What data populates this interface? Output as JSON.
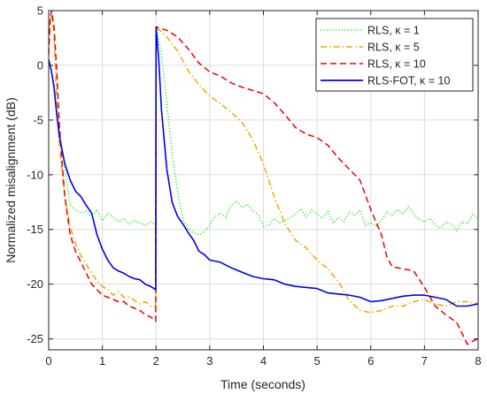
{
  "chart_data": {
    "type": "line",
    "xlabel": "Time (seconds)",
    "ylabel": "Normalized misalignment (dB)",
    "xlim": [
      0,
      8
    ],
    "ylim": [
      -26,
      5
    ],
    "xticks": [
      0,
      1,
      2,
      3,
      4,
      5,
      6,
      7,
      8
    ],
    "yticks": [
      5,
      0,
      -5,
      -10,
      -15,
      -20,
      -25
    ],
    "grid": true,
    "legend_position": "top-right",
    "series": [
      {
        "name": "RLS, κ = 1",
        "color": "#22ee22",
        "style": "dotted",
        "x": [
          0,
          0.05,
          0.1,
          0.2,
          0.3,
          0.4,
          0.5,
          0.6,
          0.7,
          0.8,
          0.9,
          1.0,
          1.1,
          1.2,
          1.3,
          1.4,
          1.5,
          1.6,
          1.7,
          1.8,
          1.9,
          1.995,
          2.0,
          2.1,
          2.2,
          2.3,
          2.4,
          2.5,
          2.6,
          2.7,
          2.8,
          2.9,
          3.0,
          3.1,
          3.2,
          3.3,
          3.4,
          3.5,
          3.6,
          3.7,
          3.8,
          3.9,
          4.0,
          4.1,
          4.2,
          4.3,
          4.4,
          4.5,
          4.6,
          4.7,
          4.8,
          4.9,
          5.0,
          5.1,
          5.2,
          5.3,
          5.4,
          5.5,
          5.6,
          5.7,
          5.8,
          5.9,
          6.0,
          6.1,
          6.2,
          6.3,
          6.4,
          6.5,
          6.6,
          6.7,
          6.8,
          6.9,
          7.0,
          7.1,
          7.2,
          7.3,
          7.4,
          7.5,
          7.6,
          7.7,
          7.8,
          7.9,
          8.0
        ],
        "y": [
          0.5,
          -0.5,
          -2.5,
          -6,
          -9.5,
          -12.8,
          -13.2,
          -13.5,
          -13.3,
          -13.8,
          -13.2,
          -14.2,
          -13.5,
          -13.9,
          -14.3,
          -14.0,
          -14.5,
          -14.2,
          -14.4,
          -14.6,
          -14.3,
          -14.6,
          3.5,
          1.0,
          -3.5,
          -8.0,
          -11.5,
          -14.0,
          -15.0,
          -15.3,
          -15.5,
          -15.2,
          -14.6,
          -13.8,
          -13.5,
          -13.9,
          -12.8,
          -12.4,
          -13.0,
          -12.7,
          -13.3,
          -13.6,
          -14.7,
          -14.6,
          -14.0,
          -14.4,
          -14.2,
          -13.9,
          -13.6,
          -13.1,
          -13.9,
          -13.2,
          -13.6,
          -14.0,
          -13.3,
          -14.4,
          -13.9,
          -14.3,
          -13.4,
          -13.7,
          -13.2,
          -14.6,
          -14.4,
          -14.7,
          -14.2,
          -13.4,
          -13.7,
          -13.2,
          -13.6,
          -12.9,
          -13.6,
          -14.1,
          -14.3,
          -14.0,
          -14.6,
          -14.9,
          -14.3,
          -14.5,
          -15.1,
          -14.3,
          -14.5,
          -13.6,
          -14.1
        ]
      },
      {
        "name": "RLS, κ = 5",
        "color": "#f0a800",
        "style": "dashdot",
        "x": [
          0,
          0.05,
          0.08,
          0.1,
          0.15,
          0.2,
          0.3,
          0.4,
          0.5,
          0.6,
          0.7,
          0.8,
          0.9,
          1.0,
          1.1,
          1.2,
          1.3,
          1.4,
          1.5,
          1.6,
          1.7,
          1.8,
          1.9,
          1.995,
          2.0,
          2.2,
          2.4,
          2.6,
          2.8,
          3.0,
          3.2,
          3.4,
          3.6,
          3.8,
          4.0,
          4.2,
          4.4,
          4.6,
          4.8,
          5.0,
          5.2,
          5.4,
          5.6,
          5.8,
          6.0,
          6.2,
          6.4,
          6.6,
          6.8,
          7.0,
          7.2,
          7.4,
          7.6,
          7.8,
          8.0
        ],
        "y": [
          3.0,
          4.5,
          4.0,
          2.5,
          -3.0,
          -7.5,
          -12.0,
          -14.8,
          -16.3,
          -17.4,
          -18.2,
          -19.0,
          -19.7,
          -20.2,
          -20.5,
          -21.0,
          -20.7,
          -21.2,
          -21.2,
          -21.5,
          -21.8,
          -21.6,
          -22.0,
          -22.0,
          3.5,
          2.6,
          1.3,
          -0.5,
          -1.8,
          -2.8,
          -3.5,
          -4.3,
          -5.2,
          -6.8,
          -9.0,
          -12.0,
          -14.5,
          -16.0,
          -16.7,
          -17.8,
          -18.6,
          -19.8,
          -21.5,
          -22.4,
          -22.6,
          -22.4,
          -22.0,
          -22.0,
          -21.6,
          -21.4,
          -21.8,
          -22.0,
          -21.6,
          -21.6,
          -21.8
        ]
      },
      {
        "name": "RLS, κ = 10",
        "color": "#ee0000",
        "style": "dashed",
        "x": [
          0,
          0.03,
          0.06,
          0.08,
          0.1,
          0.15,
          0.2,
          0.25,
          0.3,
          0.4,
          0.5,
          0.6,
          0.7,
          0.8,
          0.9,
          1.0,
          1.1,
          1.2,
          1.3,
          1.4,
          1.5,
          1.6,
          1.7,
          1.8,
          1.9,
          1.995,
          2.0,
          2.2,
          2.4,
          2.6,
          2.8,
          3.0,
          3.2,
          3.4,
          3.6,
          3.8,
          4.0,
          4.2,
          4.4,
          4.6,
          4.8,
          5.0,
          5.2,
          5.4,
          5.6,
          5.8,
          6.0,
          6.2,
          6.3,
          6.4,
          6.6,
          6.8,
          7.0,
          7.2,
          7.4,
          7.6,
          7.7,
          7.8,
          7.9,
          8.0
        ],
        "y": [
          1.0,
          4.5,
          5.0,
          4.0,
          3.5,
          -0.5,
          -5.5,
          -9.0,
          -12.0,
          -15.5,
          -17.0,
          -18.0,
          -19.0,
          -20.0,
          -20.5,
          -21.0,
          -21.2,
          -21.4,
          -21.6,
          -21.6,
          -22.0,
          -22.2,
          -22.4,
          -22.8,
          -23.0,
          -23.4,
          3.5,
          3.2,
          2.6,
          1.5,
          0.2,
          -0.6,
          -1.0,
          -1.6,
          -2.0,
          -2.3,
          -2.6,
          -3.4,
          -4.5,
          -5.7,
          -6.3,
          -6.6,
          -7.3,
          -8.5,
          -9.5,
          -10.5,
          -13.2,
          -15.5,
          -17.5,
          -18.4,
          -18.6,
          -18.8,
          -20.3,
          -22.0,
          -22.8,
          -23.5,
          -24.5,
          -25.5,
          -25.2,
          -25.0
        ]
      },
      {
        "name": "RLS-FOT, κ = 10",
        "color": "#0000ee",
        "style": "solid",
        "x": [
          0,
          0.05,
          0.1,
          0.15,
          0.2,
          0.3,
          0.4,
          0.5,
          0.6,
          0.7,
          0.8,
          0.9,
          1.0,
          1.1,
          1.2,
          1.3,
          1.4,
          1.5,
          1.6,
          1.7,
          1.8,
          1.9,
          1.995,
          2.0,
          2.05,
          2.1,
          2.2,
          2.3,
          2.4,
          2.5,
          2.6,
          2.7,
          2.8,
          2.9,
          3.0,
          3.2,
          3.4,
          3.6,
          3.8,
          4.0,
          4.2,
          4.4,
          4.6,
          4.8,
          5.0,
          5.2,
          5.4,
          5.6,
          5.8,
          6.0,
          6.2,
          6.4,
          6.6,
          6.8,
          7.0,
          7.2,
          7.4,
          7.6,
          7.8,
          8.0
        ],
        "y": [
          0.5,
          -0.5,
          -2.0,
          -4.5,
          -6.5,
          -9.0,
          -10.5,
          -11.5,
          -12.0,
          -12.8,
          -13.5,
          -15.5,
          -16.8,
          -17.8,
          -18.5,
          -18.8,
          -19.0,
          -19.3,
          -19.5,
          -19.6,
          -20.0,
          -20.2,
          -20.5,
          3.5,
          0.5,
          -4.0,
          -9.5,
          -12.5,
          -13.8,
          -14.5,
          -15.3,
          -16.0,
          -17.0,
          -17.3,
          -17.8,
          -18.0,
          -18.5,
          -18.9,
          -19.3,
          -19.5,
          -19.6,
          -20.0,
          -20.2,
          -20.3,
          -20.4,
          -20.8,
          -20.9,
          -21.0,
          -21.2,
          -21.6,
          -21.5,
          -21.3,
          -21.1,
          -21.0,
          -21.0,
          -21.2,
          -21.4,
          -22.0,
          -22.0,
          -21.8
        ]
      }
    ]
  }
}
